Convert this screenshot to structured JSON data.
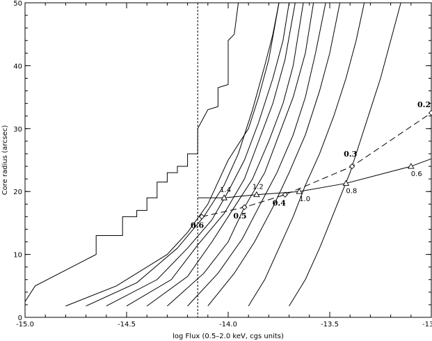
{
  "chart_data": {
    "type": "line",
    "title": "",
    "xlabel": "log Flux (0.5–2.0 keV, cgs units)",
    "ylabel": "Core radius (arcsec)",
    "xlim": [
      -15.0,
      -13.0
    ],
    "ylim": [
      0,
      50
    ],
    "grid": false,
    "xticks": {
      "major": [
        -15.0,
        -14.5,
        -14.0,
        -13.5,
        -13.0
      ],
      "labels": [
        "-15.0",
        "-14.5",
        "-14.0",
        "-13.5",
        "-13.0"
      ]
    },
    "yticks": {
      "major": [
        0,
        10,
        20,
        30,
        40,
        50
      ],
      "labels": [
        "0",
        "10",
        "20",
        "30",
        "40",
        "50"
      ]
    },
    "flux_limit_line": {
      "x": -14.15,
      "style": "dotted"
    },
    "contours": [
      {
        "points": [
          [
            -15.0,
            2.5
          ],
          [
            -14.95,
            5
          ],
          [
            -14.68,
            9.5
          ],
          [
            -14.65,
            10
          ],
          [
            -14.65,
            13
          ],
          [
            -14.52,
            13
          ],
          [
            -14.52,
            16
          ],
          [
            -14.45,
            16
          ],
          [
            -14.45,
            17
          ],
          [
            -14.4,
            17
          ],
          [
            -14.4,
            19
          ],
          [
            -14.35,
            19
          ],
          [
            -14.35,
            21.5
          ],
          [
            -14.3,
            21.5
          ],
          [
            -14.3,
            23
          ],
          [
            -14.25,
            23
          ],
          [
            -14.25,
            24
          ],
          [
            -14.2,
            24
          ],
          [
            -14.2,
            26
          ],
          [
            -14.15,
            26
          ],
          [
            -14.15,
            30
          ],
          [
            -14.1,
            33
          ],
          [
            -14.05,
            33.5
          ],
          [
            -14.05,
            36.5
          ],
          [
            -14.0,
            37
          ],
          [
            -14.0,
            44
          ],
          [
            -13.97,
            45
          ],
          [
            -13.95,
            50
          ]
        ]
      },
      {
        "points": [
          [
            -14.8,
            1.8
          ],
          [
            -14.55,
            5
          ],
          [
            -14.3,
            10
          ],
          [
            -14.2,
            13.5
          ],
          [
            -14.1,
            18
          ],
          [
            -14.0,
            25
          ],
          [
            -13.9,
            30
          ],
          [
            -13.85,
            35
          ],
          [
            -13.8,
            41
          ],
          [
            -13.75,
            50
          ]
        ]
      },
      {
        "points": [
          [
            -14.7,
            1.8
          ],
          [
            -14.45,
            5.5
          ],
          [
            -14.25,
            11
          ],
          [
            -14.12,
            16
          ],
          [
            -14.02,
            21
          ],
          [
            -13.95,
            26
          ],
          [
            -13.88,
            33
          ],
          [
            -13.82,
            40
          ],
          [
            -13.78,
            45
          ],
          [
            -13.75,
            50
          ]
        ]
      },
      {
        "points": [
          [
            -14.6,
            1.8
          ],
          [
            -14.35,
            6
          ],
          [
            -14.2,
            11
          ],
          [
            -14.08,
            15.5
          ],
          [
            -14.0,
            20
          ],
          [
            -13.92,
            25
          ],
          [
            -13.85,
            31
          ],
          [
            -13.78,
            38
          ],
          [
            -13.73,
            44
          ],
          [
            -13.7,
            50
          ]
        ]
      },
      {
        "points": [
          [
            -14.5,
            1.8
          ],
          [
            -14.28,
            6
          ],
          [
            -14.15,
            11.5
          ],
          [
            -14.02,
            16.5
          ],
          [
            -13.92,
            22
          ],
          [
            -13.85,
            28
          ],
          [
            -13.78,
            34
          ],
          [
            -13.72,
            41
          ],
          [
            -13.67,
            50
          ]
        ]
      },
      {
        "points": [
          [
            -14.4,
            1.8
          ],
          [
            -14.2,
            6.5
          ],
          [
            -14.08,
            12
          ],
          [
            -13.98,
            17
          ],
          [
            -13.88,
            22
          ],
          [
            -13.8,
            28
          ],
          [
            -13.73,
            34
          ],
          [
            -13.68,
            40
          ],
          [
            -13.63,
            50
          ]
        ]
      },
      {
        "points": [
          [
            -14.3,
            1.8
          ],
          [
            -14.12,
            7
          ],
          [
            -14.0,
            12
          ],
          [
            -13.92,
            17.5
          ],
          [
            -13.82,
            23
          ],
          [
            -13.75,
            29
          ],
          [
            -13.68,
            35
          ],
          [
            -13.62,
            42
          ],
          [
            -13.58,
            50
          ]
        ]
      },
      {
        "points": [
          [
            -14.2,
            1.8
          ],
          [
            -14.05,
            7
          ],
          [
            -13.93,
            12.5
          ],
          [
            -13.85,
            17.5
          ],
          [
            -13.76,
            23
          ],
          [
            -13.68,
            29
          ],
          [
            -13.62,
            35
          ],
          [
            -13.57,
            42
          ],
          [
            -13.52,
            50
          ]
        ]
      },
      {
        "points": [
          [
            -14.1,
            1.8
          ],
          [
            -13.97,
            7
          ],
          [
            -13.87,
            12
          ],
          [
            -13.78,
            17.5
          ],
          [
            -13.7,
            23
          ],
          [
            -13.62,
            29
          ],
          [
            -13.55,
            36
          ],
          [
            -13.5,
            42
          ],
          [
            -13.45,
            50
          ]
        ]
      },
      {
        "points": [
          [
            -13.9,
            1.8
          ],
          [
            -13.82,
            6
          ],
          [
            -13.75,
            11
          ],
          [
            -13.68,
            16
          ],
          [
            -13.62,
            21
          ],
          [
            -13.55,
            26
          ],
          [
            -13.48,
            32
          ],
          [
            -13.42,
            38
          ],
          [
            -13.37,
            44
          ],
          [
            -13.33,
            50
          ]
        ]
      },
      {
        "points": [
          [
            -13.7,
            1.8
          ],
          [
            -13.62,
            6
          ],
          [
            -13.55,
            11
          ],
          [
            -13.5,
            15
          ],
          [
            -13.45,
            19
          ],
          [
            -13.4,
            23
          ],
          [
            -13.35,
            28
          ],
          [
            -13.3,
            33
          ],
          [
            -13.25,
            38
          ],
          [
            -13.2,
            44
          ],
          [
            -13.15,
            50
          ]
        ]
      }
    ],
    "tracks": [
      {
        "style": "dashed",
        "marker": "diamond",
        "points": [
          [
            -14.13,
            16
          ],
          [
            -13.92,
            17.5
          ],
          [
            -13.72,
            19.5
          ],
          [
            -13.39,
            24
          ],
          [
            -13.0,
            32.5
          ]
        ],
        "labels": [
          {
            "text": "0.6",
            "at": [
              -14.13,
              16
            ],
            "weight": "bold"
          },
          {
            "text": "0.5",
            "at": [
              -13.92,
              17.5
            ],
            "weight": "bold"
          },
          {
            "text": "0.4",
            "at": [
              -13.72,
              19.5
            ],
            "weight": "bold"
          },
          {
            "text": "0.3",
            "at": [
              -13.39,
              24
            ],
            "weight": "bold"
          },
          {
            "text": "0.2",
            "at": [
              -13.0,
              32.5
            ],
            "weight": "bold"
          }
        ]
      },
      {
        "style": "solid",
        "marker": "triangle",
        "points": [
          [
            -14.15,
            19
          ],
          [
            -14.02,
            19
          ],
          [
            -13.86,
            19.5
          ],
          [
            -13.65,
            20
          ],
          [
            -13.42,
            21.3
          ],
          [
            -13.1,
            24
          ],
          [
            -13.0,
            25.2
          ]
        ],
        "marker_points": [
          [
            -14.02,
            19
          ],
          [
            -13.86,
            19.5
          ],
          [
            -13.65,
            20
          ],
          [
            -13.42,
            21.3
          ],
          [
            -13.1,
            24
          ]
        ],
        "labels": [
          {
            "text": "1.4",
            "at": [
              -14.02,
              19
            ],
            "weight": "normal"
          },
          {
            "text": "1.2",
            "at": [
              -13.86,
              19.5
            ],
            "weight": "normal"
          },
          {
            "text": "1.0",
            "at": [
              -13.65,
              20
            ],
            "weight": "normal"
          },
          {
            "text": "0.8",
            "at": [
              -13.42,
              21.3
            ],
            "weight": "normal"
          },
          {
            "text": "0.6",
            "at": [
              -13.1,
              24
            ],
            "weight": "normal"
          }
        ]
      }
    ]
  }
}
